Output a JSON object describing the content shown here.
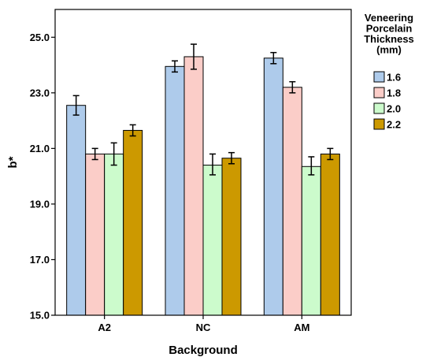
{
  "chart_data": {
    "type": "bar",
    "xlabel": "Background",
    "ylabel": "b*",
    "ylim": [
      15.0,
      26.0
    ],
    "yticks": [
      "15.0",
      "17.0",
      "19.0",
      "21.0",
      "23.0",
      "25.0"
    ],
    "categories": [
      "A2",
      "NC",
      "AM"
    ],
    "legend": {
      "title_lines": [
        "Veneering",
        "Porcelain",
        "Thickness",
        "(mm)"
      ],
      "placement": "right"
    },
    "error_bars": true,
    "series": [
      {
        "name": "1.6",
        "color": "#aecbeb",
        "values": [
          22.55,
          23.95,
          24.25
        ],
        "err_low": [
          22.2,
          23.75,
          24.05
        ],
        "err_high": [
          22.9,
          24.15,
          24.45
        ]
      },
      {
        "name": "1.8",
        "color": "#fbcdc8",
        "values": [
          20.8,
          24.3,
          23.2
        ],
        "err_low": [
          20.6,
          23.85,
          23.0
        ],
        "err_high": [
          21.0,
          24.75,
          23.4
        ]
      },
      {
        "name": "2.0",
        "color": "#ccfbcc",
        "values": [
          20.8,
          20.4,
          20.35
        ],
        "err_low": [
          20.4,
          20.05,
          20.05
        ],
        "err_high": [
          21.2,
          20.8,
          20.7
        ]
      },
      {
        "name": "2.2",
        "color": "#cc9900",
        "values": [
          21.65,
          20.65,
          20.8
        ],
        "err_low": [
          21.45,
          20.45,
          20.6
        ],
        "err_high": [
          21.85,
          20.85,
          21.0
        ]
      }
    ]
  }
}
